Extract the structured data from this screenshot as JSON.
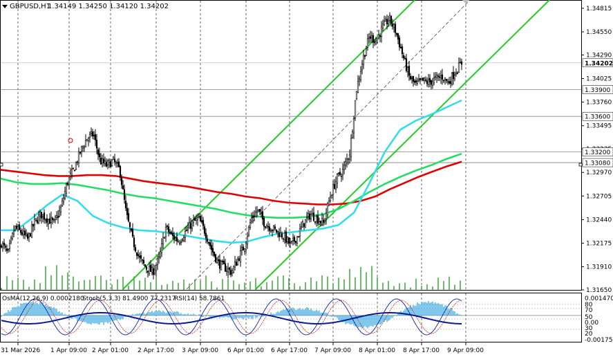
{
  "header": {
    "symbol": "GBPUSD,H1",
    "ohlc": "1.34149 1.34250 1.34120 1.34202"
  },
  "indicator_header": {
    "osma": "OsMA(12,26,9) 0.0002180",
    "stoch": "Stoch(5,3,3) 81.4900 77.2317",
    "rsi": "RSI(14) 58.7861"
  },
  "colors": {
    "candle": "#000000",
    "volume": "#2ea02e",
    "ma_red": "#e00000",
    "ma_green": "#22dd66",
    "ma_cyan": "#33ddee",
    "channel": "#22cc22",
    "histogram": "#2aa3e0",
    "price_label_bg": "#ffffff"
  },
  "chart_data": {
    "type": "candlestick",
    "symbol": "GBPUSD",
    "timeframe": "H1",
    "ylim": [
      1.3165,
      1.349
    ],
    "yticks": [
      "1.34815",
      "1.34550",
      "1.34290",
      "1.34025",
      "1.33760",
      "1.33495",
      "1.33235",
      "1.32970",
      "1.32705",
      "1.32440",
      "1.32175",
      "1.31910",
      "1.31650"
    ],
    "level_labels": [
      {
        "value": 1.34202,
        "label": "1.34202",
        "style": "current"
      },
      {
        "value": 1.339,
        "label": "1.33900",
        "style": "level"
      },
      {
        "value": 1.336,
        "label": "1.33600",
        "style": "level"
      },
      {
        "value": 1.332,
        "label": "1.33200",
        "style": "level"
      },
      {
        "value": 1.3308,
        "label": "1.33080",
        "style": "level"
      }
    ],
    "xticks": [
      "31 Mar 2026",
      "1 Apr 09:00",
      "2 Apr 01:00",
      "2 Apr 17:00",
      "3 Apr 09:00",
      "6 Apr 01:00",
      "6 Apr 17:00",
      "7 Apr 09:00",
      "8 Apr 01:00",
      "8 Apr 17:00",
      "9 Apr 09:00"
    ],
    "close_path": [
      1.3218,
      1.3205,
      1.3235,
      1.323,
      1.3222,
      1.324,
      1.325,
      1.3245,
      1.324,
      1.3255,
      1.3285,
      1.33,
      1.332,
      1.3335,
      1.334,
      1.331,
      1.3305,
      1.331,
      1.33,
      1.325,
      1.322,
      1.32,
      1.319,
      1.3185,
      1.32,
      1.3235,
      1.3225,
      1.322,
      1.323,
      1.324,
      1.3245,
      1.323,
      1.321,
      1.3195,
      1.319,
      1.3185,
      1.32,
      1.3215,
      1.3245,
      1.3255,
      1.324,
      1.3235,
      1.323,
      1.3225,
      1.3215,
      1.3225,
      1.324,
      1.325,
      1.3245,
      1.324,
      1.327,
      1.329,
      1.33,
      1.332,
      1.339,
      1.3425,
      1.345,
      1.3445,
      1.346,
      1.347,
      1.3455,
      1.343,
      1.3405,
      1.3395,
      1.34,
      1.3398,
      1.3402,
      1.3405,
      1.3398,
      1.341,
      1.342
    ],
    "ma_red": [
      1.33,
      1.3298,
      1.3296,
      1.3294,
      1.3293,
      1.3293,
      1.3294,
      1.3294,
      1.3293,
      1.329,
      1.3287,
      1.3285,
      1.3283,
      1.3281,
      1.3278,
      1.3275,
      1.3273,
      1.327,
      1.3268,
      1.3265,
      1.3263,
      1.3262,
      1.3261,
      1.3261,
      1.3262,
      1.3265,
      1.327,
      1.3278,
      1.3285,
      1.3292,
      1.3298,
      1.3304,
      1.3309
    ],
    "ma_green": [
      1.329,
      1.3286,
      1.3284,
      1.3284,
      1.3285,
      1.3283,
      1.328,
      1.3277,
      1.3273,
      1.327,
      1.3268,
      1.3265,
      1.3262,
      1.3259,
      1.3256,
      1.3252,
      1.3249,
      1.3247,
      1.3246,
      1.3246,
      1.3247,
      1.325,
      1.3256,
      1.3265,
      1.3275,
      1.3284,
      1.3292,
      1.3299,
      1.3305,
      1.3312,
      1.3318
    ],
    "ma_cyan": [
      1.3232,
      1.3232,
      1.3245,
      1.326,
      1.3272,
      1.3265,
      1.3248,
      1.324,
      1.3235,
      1.3232,
      1.3231,
      1.3229,
      1.3226,
      1.3223,
      1.322,
      1.3218,
      1.3219,
      1.3224,
      1.3228,
      1.323,
      1.3232,
      1.3234,
      1.3238,
      1.3252,
      1.3285,
      1.332,
      1.3345,
      1.3355,
      1.3362,
      1.337,
      1.3378
    ],
    "osma_ylim": [
      -0.001755,
      0.00147
    ],
    "osma_labels": [
      "0.001470",
      "0.00",
      "-0.001755"
    ],
    "stoch_labels": [
      "80",
      "20"
    ],
    "rsi_labels": [
      "70",
      "50",
      "30"
    ]
  }
}
